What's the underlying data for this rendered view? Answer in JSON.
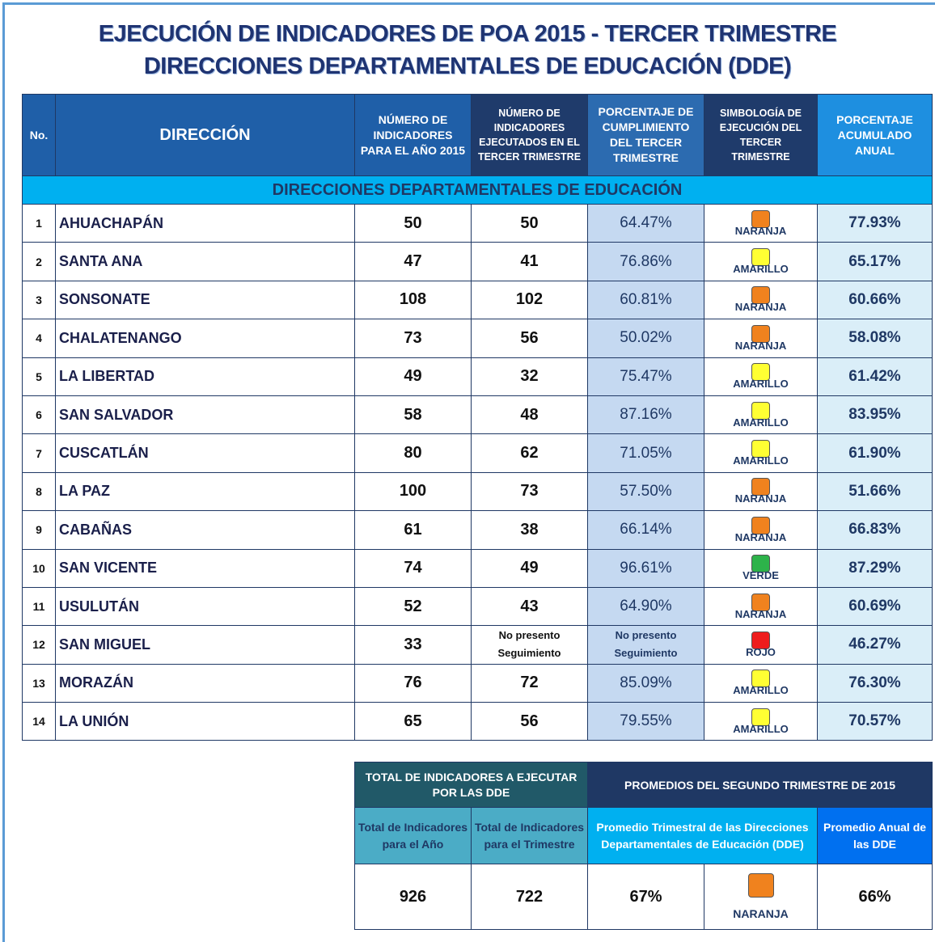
{
  "title": [
    "EJECUCIÓN DE INDICADORES DE POA 2015 - TERCER TRIMESTRE",
    "DIRECCIONES DEPARTAMENTALES DE EDUCACIÓN (DDE)"
  ],
  "symbol_colors": {
    "NARANJA": "#f0821e",
    "AMARILLO": "#ffff33",
    "VERDE": "#2db34a",
    "ROJO": "#ee1c1c"
  },
  "table": {
    "headers": [
      "No.",
      "DIRECCIÓN",
      "NÚMERO DE INDICADORES PARA EL AÑO 2015",
      "NÚMERO DE INDICADORES EJECUTADOS EN EL TERCER TRIMESTRE",
      "PORCENTAJE DE CUMPLIMIENTO DEL TERCER TRIMESTRE",
      "SIMBOLOGÍA DE EJECUCIÓN DEL TERCER TRIMESTRE",
      "PORCENTAJE ACUMULADO ANUAL"
    ],
    "section": "DIRECCIONES DEPARTAMENTALES DE EDUCACIÓN",
    "rows": [
      [
        "1",
        "AHUACHAPÁN",
        "50",
        "50",
        "64.47%",
        "NARANJA",
        "77.93%"
      ],
      [
        "2",
        "SANTA ANA",
        "47",
        "41",
        "76.86%",
        "AMARILLO",
        "65.17%"
      ],
      [
        "3",
        "SONSONATE",
        "108",
        "102",
        "60.81%",
        "NARANJA",
        "60.66%"
      ],
      [
        "4",
        "CHALATENANGO",
        "73",
        "56",
        "50.02%",
        "NARANJA",
        "58.08%"
      ],
      [
        "5",
        "LA LIBERTAD",
        "49",
        "32",
        "75.47%",
        "AMARILLO",
        "61.42%"
      ],
      [
        "6",
        "SAN SALVADOR",
        "58",
        "48",
        "87.16%",
        "AMARILLO",
        "83.95%"
      ],
      [
        "7",
        "CUSCATLÁN",
        "80",
        "62",
        "71.05%",
        "AMARILLO",
        "61.90%"
      ],
      [
        "8",
        "LA PAZ",
        "100",
        "73",
        "57.50%",
        "NARANJA",
        "51.66%"
      ],
      [
        "9",
        "CABAÑAS",
        "61",
        "38",
        "66.14%",
        "NARANJA",
        "66.83%"
      ],
      [
        "10",
        "SAN VICENTE",
        "74",
        "49",
        "96.61%",
        "VERDE",
        "87.29%"
      ],
      [
        "11",
        "USULUTÁN",
        "52",
        "43",
        "64.90%",
        "NARANJA",
        "60.69%"
      ],
      [
        "12",
        "SAN MIGUEL",
        "33",
        "No presento Seguimiento",
        "No presento Seguimiento",
        "ROJO",
        "46.27%"
      ],
      [
        "13",
        "MORAZÁN",
        "76",
        "72",
        "85.09%",
        "AMARILLO",
        "76.30%"
      ],
      [
        "14",
        "LA UNIÓN",
        "65",
        "56",
        "79.55%",
        "AMARILLO",
        "70.57%"
      ]
    ]
  },
  "summary": {
    "group1": "TOTAL DE INDICADORES A EJECUTAR POR LAS DDE",
    "group2": "PROMEDIOS DEL SEGUNDO TRIMESTRE DE 2015",
    "headers": [
      "Total de Indicadores para el Año",
      "Total de Indicadores para el Trimestre",
      "Promedio Trimestral de las Direcciones Departamentales de Educación (DDE)",
      "Promedio Anual de las DDE"
    ],
    "values": [
      "926",
      "722",
      "67%",
      "NARANJA",
      "66%"
    ]
  }
}
